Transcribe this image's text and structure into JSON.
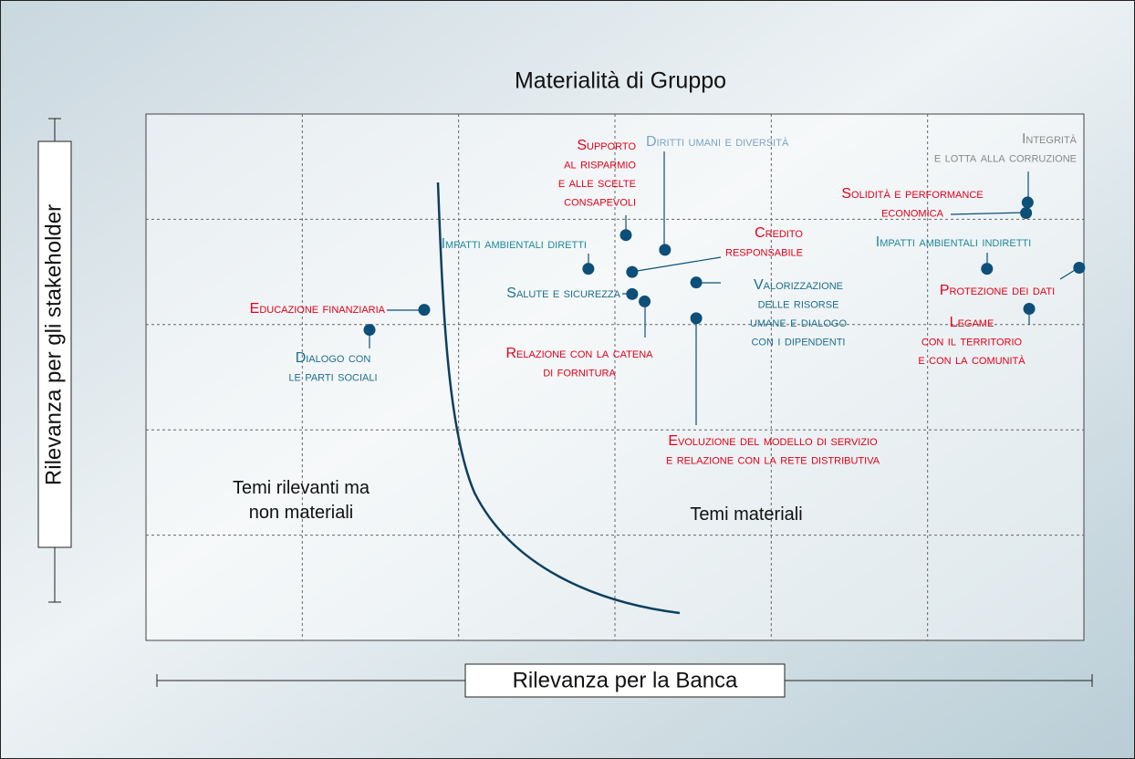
{
  "chart_data": {
    "type": "scatter",
    "title": "Materialità di Gruppo",
    "xlabel": "Rilevanza per la Banca",
    "ylabel": "Rilevanza per gli stakeholder",
    "xlim": [
      0,
      6
    ],
    "ylim": [
      0,
      5
    ],
    "xticks": [
      1,
      2,
      3,
      4,
      5
    ],
    "yticks": [
      1,
      2,
      3,
      4
    ],
    "grid": true,
    "dot_color": "#0d4f78",
    "annotations": [
      {
        "lines": [
          "Temi rilevanti ma",
          "non materiali"
        ]
      },
      {
        "lines": [
          "Temi materiali"
        ]
      }
    ],
    "points": [
      {
        "label": [
          "Dialogo con",
          "le parti sociali"
        ],
        "color": "#1d6f8a",
        "x": 1.43,
        "y": 2.95
      },
      {
        "label": [
          "Educazione finanziaria"
        ],
        "color": "#e2001a",
        "x": 1.78,
        "y": 3.14
      },
      {
        "label": [
          "Impatti ambientali diretti"
        ],
        "color": "#1d8a9a",
        "x": 2.83,
        "y": 3.53
      },
      {
        "label": [
          "Supporto",
          "al risparmio",
          "e alle scelte",
          "consapevoli"
        ],
        "color": "#e2001a",
        "x": 3.07,
        "y": 3.85
      },
      {
        "label": [
          "Diritti umani e diversità"
        ],
        "color": "#7fa3c4",
        "x": 3.32,
        "y": 3.71
      },
      {
        "label": [
          "Credito",
          "responsabile"
        ],
        "color": "#e2001a",
        "x": 3.11,
        "y": 3.5
      },
      {
        "label": [
          "Salute e sicurezza"
        ],
        "color": "#1d6f8a",
        "x": 3.11,
        "y": 3.29
      },
      {
        "label": [
          "Relazione con la catena",
          "di fornitura"
        ],
        "color": "#e2001a",
        "x": 3.19,
        "y": 3.22
      },
      {
        "label": [
          "Valorizzazione",
          "delle risorse",
          "umane e dialogo",
          "con i dipendenti"
        ],
        "color": "#1d6f8a",
        "x": 3.52,
        "y": 3.4
      },
      {
        "label": [
          "Evoluzione del modello di servizio",
          "e relazione con la rete distributiva"
        ],
        "color": "#e2001a",
        "x": 3.52,
        "y": 3.06
      },
      {
        "label": [
          "Integrità",
          "e lotta alla corruzione"
        ],
        "color": "#888888",
        "x": 5.64,
        "y": 4.16
      },
      {
        "label": [
          "Solidità e performance",
          "economica"
        ],
        "color": "#e2001a",
        "x": 5.63,
        "y": 4.06
      },
      {
        "label": [
          "Impatti ambientali indiretti"
        ],
        "color": "#1d8a9a",
        "x": 5.38,
        "y": 3.53
      },
      {
        "label": [
          "Protezione dei dati"
        ],
        "color": "#e2001a",
        "x": 5.97,
        "y": 3.54
      },
      {
        "label": [
          "Legame",
          "con il territorio",
          "e con la comunità"
        ],
        "color": "#e2001a",
        "x": 5.65,
        "y": 3.15
      }
    ]
  }
}
